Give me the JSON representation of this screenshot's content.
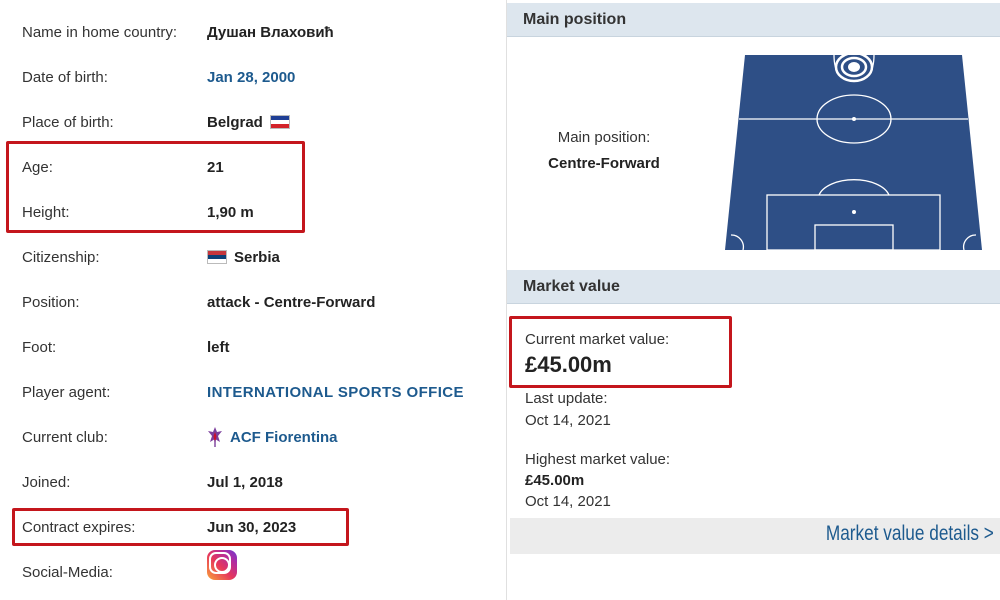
{
  "profile": {
    "rows": [
      {
        "label": "Name in home country:",
        "value": "Душан Влаховић"
      },
      {
        "label": "Date of birth:",
        "value": "Jan 28, 2000"
      },
      {
        "label": "Place of birth:",
        "value": "Belgrad"
      },
      {
        "label": "Age:",
        "value": "21"
      },
      {
        "label": "Height:",
        "value": "1,90 m"
      },
      {
        "label": "Citizenship:",
        "value": "Serbia"
      },
      {
        "label": "Position:",
        "value": "attack - Centre-Forward"
      },
      {
        "label": "Foot:",
        "value": "left"
      },
      {
        "label": "Player agent:",
        "value": "INTERNATIONAL SPORTS OFFICE"
      },
      {
        "label": "Current club:",
        "value": "ACF Fiorentina"
      },
      {
        "label": "Joined:",
        "value": "Jul 1, 2018"
      },
      {
        "label": "Contract expires:",
        "value": "Jun 30, 2023"
      },
      {
        "label": "Social-Media:",
        "value": ""
      }
    ],
    "icons": {
      "birth_flag": "yugoslavia-flag-icon",
      "citizenship_flag": "serbia-flag-icon",
      "club_crest": "fiorentina-crest-icon",
      "social": "instagram-icon"
    }
  },
  "main_position": {
    "header": "Main position",
    "label": "Main position:",
    "value": "Centre-Forward"
  },
  "market_value": {
    "header": "Market value",
    "current_label": "Current market value:",
    "current_value": "£45.00m",
    "last_update_label": "Last update:",
    "last_update_date": "Oct 14, 2021",
    "highest_label": "Highest market value:",
    "highest_value": "£45.00m",
    "highest_date": "Oct 14, 2021",
    "details_link": "Market value details >"
  },
  "colors": {
    "highlight": "#c4161c",
    "link": "#1d5a8e",
    "pitch": "#2e4f86",
    "header_bg": "#dde6ee"
  }
}
